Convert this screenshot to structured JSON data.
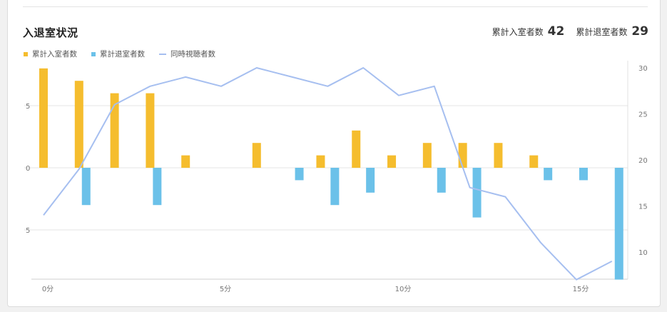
{
  "header": {
    "title": "入退室状況",
    "total_enter_label": "累計入室者数",
    "total_enter_value": "42",
    "total_exit_label": "累計退室者数",
    "total_exit_value": "29"
  },
  "colors": {
    "enter": "#f5bd2e",
    "exit": "#6bc1e9",
    "viewers": "#a6bff0",
    "grid": "#e6e6e6",
    "axis_text": "#777777"
  },
  "chart_data": {
    "type": "bar",
    "title": "入退室状況",
    "xlabel": "",
    "ylabel": "",
    "x": [
      0,
      1,
      2,
      3,
      4,
      5,
      6,
      7,
      8,
      9,
      10,
      11,
      12,
      13,
      14,
      15,
      16
    ],
    "x_ticks": [
      0,
      5,
      10,
      15
    ],
    "x_tick_labels": [
      "0分",
      "5分",
      "10分",
      "15分"
    ],
    "y_left_ticks": [
      5,
      0,
      -5
    ],
    "y_left_tick_labels": [
      "5",
      "0",
      "5"
    ],
    "y_left_range": [
      -9,
      8.3
    ],
    "y_right_ticks": [
      30,
      25,
      20,
      15,
      10
    ],
    "y_right_tick_labels": [
      "30",
      "25",
      "20",
      "15",
      "10"
    ],
    "y_right_range": [
      7,
      32
    ],
    "legend_position": "top-left",
    "grid": true,
    "series": [
      {
        "name": "累計入室者数",
        "kind": "bar",
        "axis": "left",
        "points": [
          [
            0,
            8
          ],
          [
            1,
            7
          ],
          [
            2,
            6
          ],
          [
            3,
            6
          ],
          [
            4,
            1
          ],
          [
            6,
            2
          ],
          [
            7.8,
            1
          ],
          [
            8.8,
            3
          ],
          [
            9.8,
            1
          ],
          [
            10.8,
            2
          ],
          [
            11.8,
            2
          ],
          [
            12.8,
            2
          ],
          [
            13.8,
            1
          ]
        ]
      },
      {
        "name": "累計退室者数",
        "kind": "bar",
        "axis": "left",
        "points": [
          [
            1.2,
            -3
          ],
          [
            3.2,
            -3
          ],
          [
            7.2,
            -1
          ],
          [
            8.2,
            -3
          ],
          [
            9.2,
            -2
          ],
          [
            11.2,
            -2
          ],
          [
            12.2,
            -4
          ],
          [
            14.2,
            -1
          ],
          [
            15.2,
            -1
          ],
          [
            16.2,
            -9
          ]
        ]
      },
      {
        "name": "同時視聴者数",
        "kind": "line",
        "axis": "right",
        "points": [
          [
            0,
            14
          ],
          [
            1,
            19
          ],
          [
            2,
            26
          ],
          [
            3,
            28
          ],
          [
            4,
            29
          ],
          [
            5,
            28
          ],
          [
            6,
            30
          ],
          [
            7,
            29
          ],
          [
            8,
            28
          ],
          [
            9,
            30
          ],
          [
            10,
            27
          ],
          [
            11,
            28
          ],
          [
            12,
            17
          ],
          [
            13,
            16
          ],
          [
            14,
            11
          ],
          [
            15,
            7
          ],
          [
            16,
            9
          ]
        ]
      }
    ]
  }
}
